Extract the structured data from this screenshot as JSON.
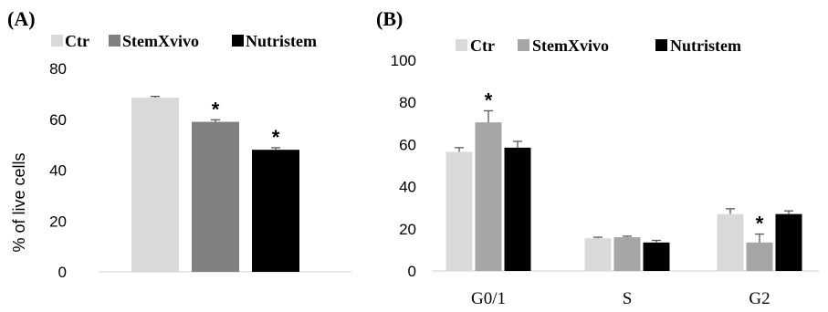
{
  "chart_data": [
    {
      "type": "bar",
      "panel_label": "(A)",
      "ylabel": "% of live cells",
      "ylim": [
        0,
        80
      ],
      "yticks": [
        "0",
        "20",
        "40",
        "60",
        "80"
      ],
      "categories": [
        ""
      ],
      "series": [
        {
          "name": "Ctr",
          "color": "#d9d9d9",
          "values": [
            68.5
          ],
          "errors": [
            0.5
          ],
          "marks": [
            ""
          ]
        },
        {
          "name": "StemXvivo",
          "color": "#808080",
          "values": [
            59
          ],
          "errors": [
            0.8
          ],
          "marks": [
            "*"
          ]
        },
        {
          "name": "Nutristem",
          "color": "#000000",
          "values": [
            48
          ],
          "errors": [
            0.8
          ],
          "marks": [
            "*"
          ]
        }
      ],
      "legend": "top",
      "grid": false
    },
    {
      "type": "bar",
      "panel_label": "(B)",
      "ylim": [
        0,
        100
      ],
      "yticks": [
        "0",
        "20",
        "40",
        "60",
        "80",
        "100"
      ],
      "categories": [
        "G0/1",
        "S",
        "G2"
      ],
      "series": [
        {
          "name": "Ctr",
          "color": "#d9d9d9",
          "values": [
            56.5,
            15.5,
            27
          ],
          "errors": [
            2,
            0.5,
            2.5
          ],
          "marks": [
            "",
            "",
            ""
          ]
        },
        {
          "name": "StemXvivo",
          "color": "#a6a6a6",
          "values": [
            70.5,
            16,
            13.5
          ],
          "errors": [
            5.5,
            0.5,
            4
          ],
          "marks": [
            "*",
            "",
            "*"
          ]
        },
        {
          "name": "Nutristem",
          "color": "#000000",
          "values": [
            58.5,
            13.5,
            27
          ],
          "errors": [
            3,
            1,
            1.5
          ],
          "marks": [
            "",
            "",
            ""
          ]
        }
      ],
      "legend": "top",
      "grid": false
    }
  ]
}
